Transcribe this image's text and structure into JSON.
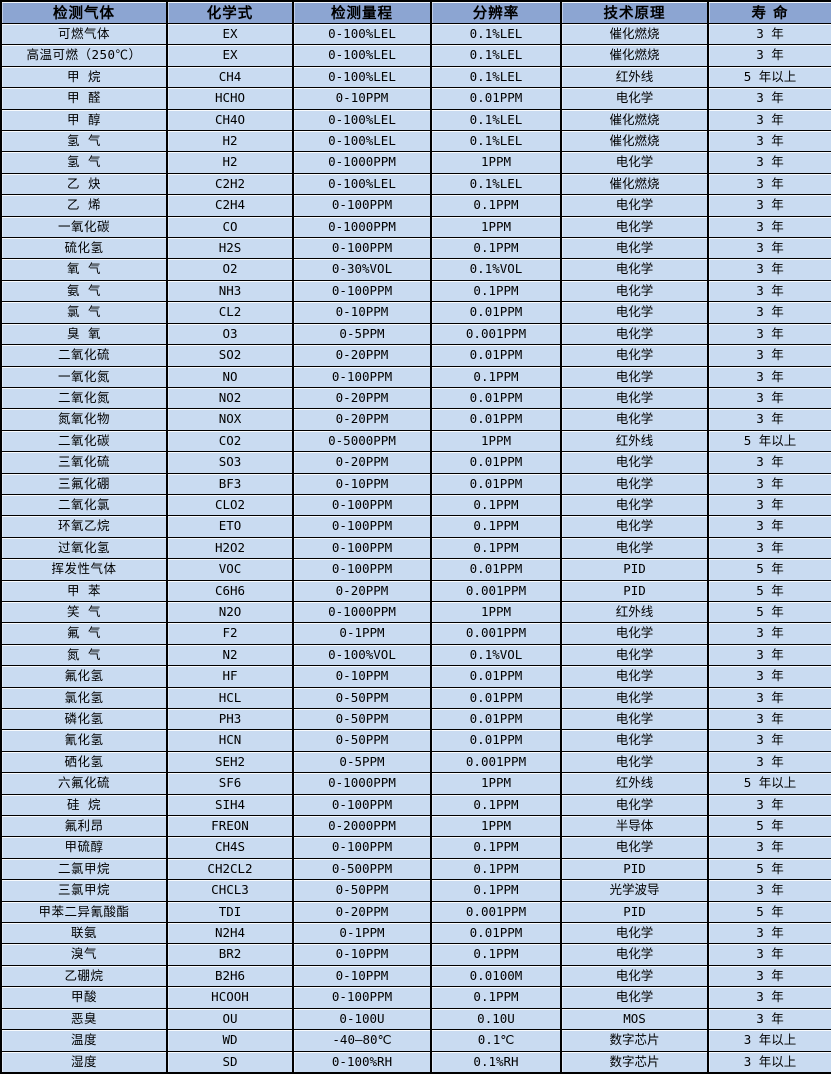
{
  "table": {
    "headers": [
      "检测气体",
      "化学式",
      "检测量程",
      "分辨率",
      "技术原理",
      "寿 命"
    ],
    "column_keys": [
      "gas",
      "formula",
      "range",
      "resolution",
      "principle",
      "lifespan"
    ],
    "rows": [
      [
        "可燃气体",
        "EX",
        "0-100%LEL",
        "0.1%LEL",
        "催化燃烧",
        "3 年"
      ],
      [
        "高温可燃（250℃）",
        "EX",
        "0-100%LEL",
        "0.1%LEL",
        "催化燃烧",
        "3 年"
      ],
      [
        "甲 烷",
        "CH4",
        "0-100%LEL",
        "0.1%LEL",
        "红外线",
        "5 年以上"
      ],
      [
        "甲 醛",
        "HCHO",
        "0-10PPM",
        "0.01PPM",
        "电化学",
        "3 年"
      ],
      [
        "甲 醇",
        "CH4O",
        "0-100%LEL",
        "0.1%LEL",
        "催化燃烧",
        "3 年"
      ],
      [
        "氢 气",
        "H2",
        "0-100%LEL",
        "0.1%LEL",
        "催化燃烧",
        "3 年"
      ],
      [
        "氢 气",
        "H2",
        "0-1000PPM",
        "1PPM",
        "电化学",
        "3 年"
      ],
      [
        "乙 炔",
        "C2H2",
        "0-100%LEL",
        "0.1%LEL",
        "催化燃烧",
        "3 年"
      ],
      [
        "乙 烯",
        "C2H4",
        "0-100PPM",
        "0.1PPM",
        "电化学",
        "3 年"
      ],
      [
        "一氧化碳",
        "CO",
        "0-1000PPM",
        "1PPM",
        "电化学",
        "3 年"
      ],
      [
        "硫化氢",
        "H2S",
        "0-100PPM",
        "0.1PPM",
        "电化学",
        "3 年"
      ],
      [
        "氧 气",
        "O2",
        "0-30%VOL",
        "0.1%VOL",
        "电化学",
        "3 年"
      ],
      [
        "氨 气",
        "NH3",
        "0-100PPM",
        "0.1PPM",
        "电化学",
        "3 年"
      ],
      [
        "氯 气",
        "CL2",
        "0-10PPM",
        "0.01PPM",
        "电化学",
        "3 年"
      ],
      [
        "臭 氧",
        "O3",
        "0-5PPM",
        "0.001PPM",
        "电化学",
        "3 年"
      ],
      [
        "二氧化硫",
        "SO2",
        "0-20PPM",
        "0.01PPM",
        "电化学",
        "3 年"
      ],
      [
        "一氧化氮",
        "NO",
        "0-100PPM",
        "0.1PPM",
        "电化学",
        "3 年"
      ],
      [
        "二氧化氮",
        "NO2",
        "0-20PPM",
        "0.01PPM",
        "电化学",
        "3 年"
      ],
      [
        "氮氧化物",
        "NOX",
        "0-20PPM",
        "0.01PPM",
        "电化学",
        "3 年"
      ],
      [
        "二氧化碳",
        "CO2",
        "0-5000PPM",
        "1PPM",
        "红外线",
        "5 年以上"
      ],
      [
        "三氧化硫",
        "SO3",
        "0-20PPM",
        "0.01PPM",
        "电化学",
        "3 年"
      ],
      [
        "三氟化硼",
        "BF3",
        "0-10PPM",
        "0.01PPM",
        "电化学",
        "3 年"
      ],
      [
        "二氧化氯",
        "CLO2",
        "0-100PPM",
        "0.1PPM",
        "电化学",
        "3 年"
      ],
      [
        "环氧乙烷",
        "ETO",
        "0-100PPM",
        "0.1PPM",
        "电化学",
        "3 年"
      ],
      [
        "过氧化氢",
        "H2O2",
        "0-100PPM",
        "0.1PPM",
        "电化学",
        "3 年"
      ],
      [
        "挥发性气体",
        "VOC",
        "0-100PPM",
        "0.01PPM",
        "PID",
        "5 年"
      ],
      [
        "甲 苯",
        "C6H6",
        "0-20PPM",
        "0.001PPM",
        "PID",
        "5 年"
      ],
      [
        "笑 气",
        "N2O",
        "0-1000PPM",
        "1PPM",
        "红外线",
        "5 年"
      ],
      [
        "氟 气",
        "F2",
        "0-1PPM",
        "0.001PPM",
        "电化学",
        "3 年"
      ],
      [
        "氮 气",
        "N2",
        "0-100%VOL",
        "0.1%VOL",
        "电化学",
        "3 年"
      ],
      [
        "氟化氢",
        "HF",
        "0-10PPM",
        "0.01PPM",
        "电化学",
        "3 年"
      ],
      [
        "氯化氢",
        "HCL",
        "0-50PPM",
        "0.01PPM",
        "电化学",
        "3 年"
      ],
      [
        "磷化氢",
        "PH3",
        "0-50PPM",
        "0.01PPM",
        "电化学",
        "3 年"
      ],
      [
        "氰化氢",
        "HCN",
        "0-50PPM",
        "0.01PPM",
        "电化学",
        "3 年"
      ],
      [
        "硒化氢",
        "SEH2",
        "0-5PPM",
        "0.001PPM",
        "电化学",
        "3 年"
      ],
      [
        "六氟化硫",
        "SF6",
        "0-1000PPM",
        "1PPM",
        "红外线",
        "5 年以上"
      ],
      [
        "硅 烷",
        "SIH4",
        "0-100PPM",
        "0.1PPM",
        "电化学",
        "3 年"
      ],
      [
        "氟利昂",
        "FREON",
        "0-2000PPM",
        "1PPM",
        "半导体",
        "5 年"
      ],
      [
        "甲硫醇",
        "CH4S",
        "0-100PPM",
        "0.1PPM",
        "电化学",
        "3 年"
      ],
      [
        "二氯甲烷",
        "CH2CL2",
        "0-500PPM",
        "0.1PPM",
        "PID",
        "5 年"
      ],
      [
        "三氯甲烷",
        "CHCL3",
        "0-50PPM",
        "0.1PPM",
        "光学波导",
        "3 年"
      ],
      [
        "甲苯二异氰酸酯",
        "TDI",
        "0-20PPM",
        "0.001PPM",
        "PID",
        "5 年"
      ],
      [
        "联氨",
        "N2H4",
        "0-1PPM",
        "0.01PPM",
        "电化学",
        "3 年"
      ],
      [
        "溴气",
        "BR2",
        "0-10PPM",
        "0.1PPM",
        "电化学",
        "3 年"
      ],
      [
        "乙硼烷",
        "B2H6",
        "0-10PPM",
        "0.0100M",
        "电化学",
        "3 年"
      ],
      [
        "甲酸",
        "HCOOH",
        "0-100PPM",
        "0.1PPM",
        "电化学",
        "3 年"
      ],
      [
        "恶臭",
        "OU",
        "0-100U",
        "0.10U",
        "MOS",
        "3 年"
      ],
      [
        "温度",
        "WD",
        "-40—80℃",
        "0.1℃",
        "数字芯片",
        "3 年以上"
      ],
      [
        "湿度",
        "SD",
        "0-100%RH",
        "0.1%RH",
        "数字芯片",
        "3 年以上"
      ]
    ]
  },
  "colors": {
    "header_bg": "#8CA5D2",
    "row_bg": "#C9DBF1",
    "border": "#000000",
    "text": "#000000"
  }
}
